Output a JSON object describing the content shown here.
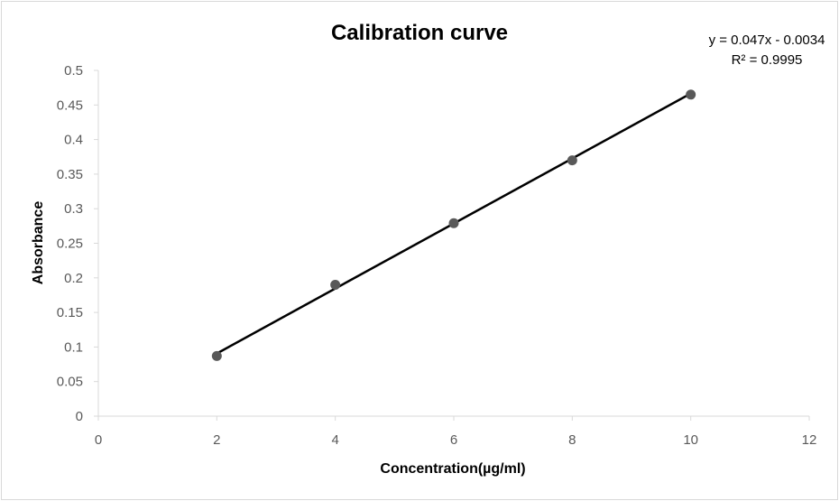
{
  "chart_data": {
    "type": "scatter",
    "title": "Calibration curve",
    "xlabel": "Concentration(µg/ml)",
    "ylabel": "Absorbance",
    "xlim": [
      0,
      12
    ],
    "ylim": [
      0,
      0.5
    ],
    "x_ticks": [
      "0",
      "2",
      "4",
      "6",
      "8",
      "10",
      "12"
    ],
    "y_ticks": [
      "0",
      "0.05",
      "0.1",
      "0.15",
      "0.2",
      "0.25",
      "0.3",
      "0.35",
      "0.4",
      "0.45",
      "0.5"
    ],
    "grid": false,
    "legend": "none",
    "series": [
      {
        "x": [
          2,
          4,
          6,
          8,
          10
        ],
        "y": [
          0.087,
          0.19,
          0.279,
          0.37,
          0.465
        ],
        "marker_color": "#595959",
        "line_color": "#000000"
      }
    ],
    "trendline": {
      "type": "linear",
      "slope": 0.047,
      "intercept": -0.0034,
      "equation_label": "y = 0.047x - 0.0034",
      "r2_label": "R² = 0.9995"
    }
  }
}
